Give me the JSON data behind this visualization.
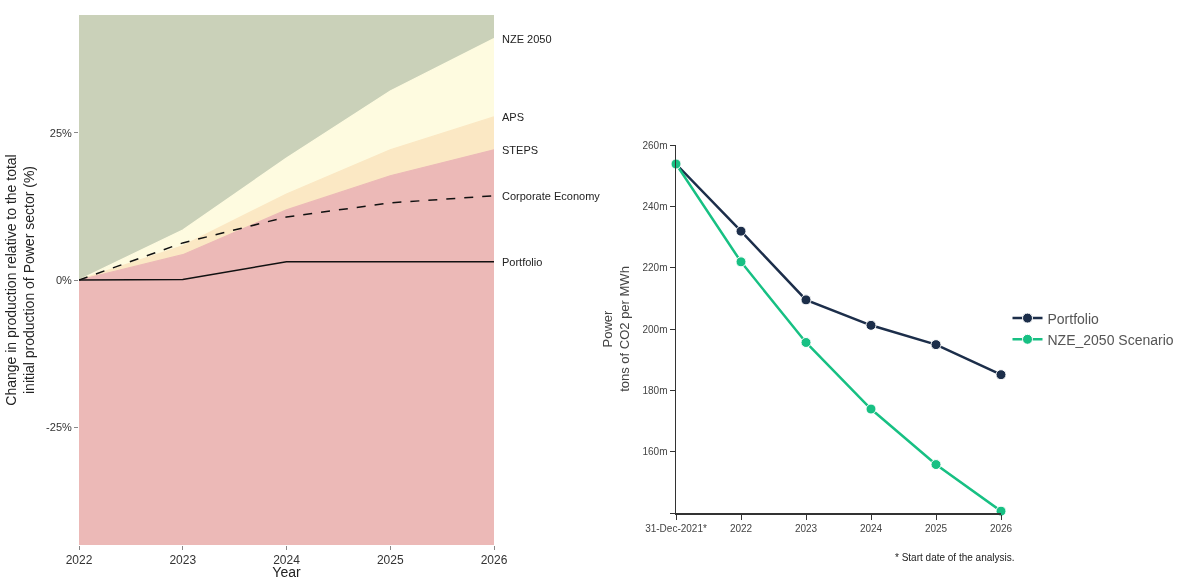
{
  "chart_data": [
    {
      "type": "area",
      "xlabel": "Year",
      "ylabel": "Change in production relative to the total\ninitial production of Power sector (%)",
      "x": [
        2022,
        2023,
        2024,
        2025,
        2026
      ],
      "xlim": [
        2022,
        2026
      ],
      "xticks": [
        2022,
        2023,
        2024,
        2025,
        2026
      ],
      "ylim": [
        -45,
        45
      ],
      "yticks": [
        {
          "value": -25,
          "label": "-25%"
        },
        {
          "value": 0,
          "label": "0%"
        },
        {
          "value": 25,
          "label": "25%"
        }
      ],
      "grid": false,
      "legend": false,
      "bands": [
        {
          "axis": "y",
          "from": 0,
          "to": 45,
          "color": "#cad1b9"
        },
        {
          "axis": "y",
          "from": -45,
          "to": 0,
          "color": "#ecb9b7"
        }
      ],
      "series": [
        {
          "name": "STEPS",
          "type": "area",
          "color": "#ecb9b7",
          "values": [
            0,
            4.3,
            11.9,
            17.7,
            22.1
          ]
        },
        {
          "name": "APS",
          "type": "area",
          "color": "#fbe8c4",
          "values": [
            0,
            5.8,
            14.6,
            22.1,
            27.7
          ]
        },
        {
          "name": "NZE 2050",
          "type": "area",
          "color": "#fefbe0",
          "values": [
            0,
            8.5,
            20.7,
            32.1,
            41
          ]
        },
        {
          "name": "Corporate Economy",
          "type": "line",
          "color": "#111111",
          "line_style": "dashed",
          "values": [
            0,
            6.3,
            10.7,
            13.1,
            14.3
          ]
        },
        {
          "name": "Portfolio",
          "type": "line",
          "color": "#111111",
          "line_style": "solid",
          "values": [
            0,
            0.1,
            3.1,
            3.1,
            3.1
          ]
        }
      ]
    },
    {
      "type": "line",
      "ylabel": "Power\ntons of CO2 per MWh",
      "categories": [
        "31-Dec-2021*",
        "2022",
        "2023",
        "2024",
        "2025",
        "2026"
      ],
      "ylim": [
        140,
        260
      ],
      "yticks": [
        {
          "value": 140,
          "label": null
        },
        {
          "value": 160,
          "label": "160m"
        },
        {
          "value": 180,
          "label": "180m"
        },
        {
          "value": 200,
          "label": "200m"
        },
        {
          "value": 220,
          "label": "220m"
        },
        {
          "value": 240,
          "label": "240m"
        },
        {
          "value": 260,
          "label": "260m"
        }
      ],
      "grid": false,
      "legend": "right",
      "marker": "circle",
      "line_style": "solid",
      "annotations": [
        "* Start date of the analysis."
      ],
      "series": [
        {
          "name": "Portfolio",
          "color": "#1c2e4a",
          "values": [
            253.8,
            231.9,
            209.5,
            201.2,
            194.9,
            185.1
          ]
        },
        {
          "name": "NZE_2050 Scenario",
          "color": "#17c083",
          "values": [
            253.8,
            221.9,
            195.6,
            173.9,
            155.8,
            140.6
          ]
        }
      ]
    }
  ]
}
